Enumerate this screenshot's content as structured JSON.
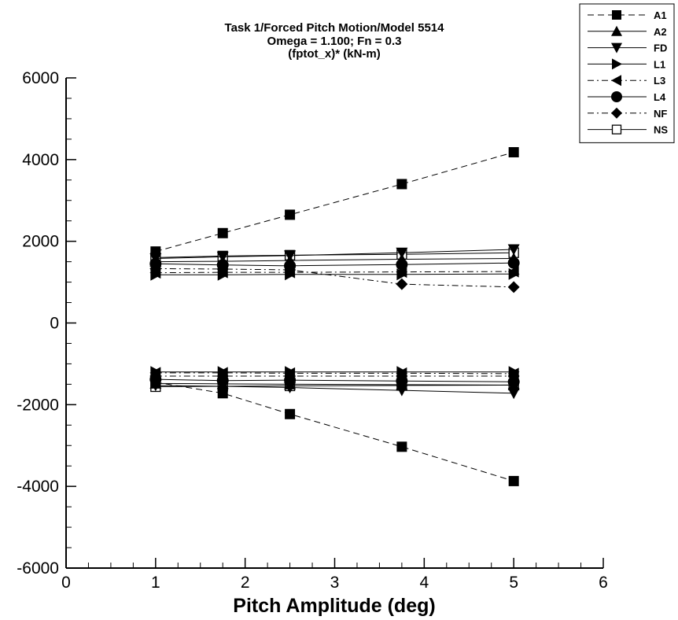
{
  "chart_data": {
    "type": "scatter",
    "title_lines": [
      "Task 1/Forced Pitch Motion/Model 5514",
      "Omega =  1.100; Fn = 0.3",
      "(fptot_x)* (kN-m)"
    ],
    "xlabel": "Pitch Amplitude (deg)",
    "ylabel": "",
    "xlim": [
      0,
      6
    ],
    "ylim": [
      -6000,
      6000
    ],
    "x_ticks": [
      0,
      1,
      2,
      3,
      4,
      5,
      6
    ],
    "y_ticks": [
      -6000,
      -4000,
      -2000,
      0,
      2000,
      4000,
      6000
    ],
    "x_tick_labels": [
      "0",
      "1",
      "2",
      "3",
      "4",
      "5",
      "6"
    ],
    "y_tick_labels": [
      "-6000",
      "-4000",
      "-2000",
      "0",
      "2000",
      "4000",
      "6000"
    ],
    "grid": false,
    "legend_position": "top-right",
    "x": [
      1,
      1.75,
      2.5,
      3.75,
      5
    ],
    "series": [
      {
        "name": "A1",
        "marker": "square",
        "dash": "dashed",
        "upper": [
          1750,
          2200,
          2650,
          3400,
          4180
        ],
        "lower": [
          -1450,
          -1720,
          -2230,
          -3030,
          -3870
        ]
      },
      {
        "name": "A2",
        "marker": "triangle-up",
        "dash": "solid",
        "upper": [
          1500,
          1510,
          1530,
          1560,
          1580
        ],
        "lower": [
          -1480,
          -1490,
          -1500,
          -1510,
          -1520
        ]
      },
      {
        "name": "FD",
        "marker": "triangle-down",
        "dash": "solid",
        "upper": [
          1580,
          1620,
          1650,
          1720,
          1800
        ],
        "lower": [
          -1530,
          -1550,
          -1580,
          -1650,
          -1720
        ]
      },
      {
        "name": "L1",
        "marker": "triangle-right",
        "dash": "solid",
        "upper": [
          1180,
          1180,
          1190,
          1190,
          1200
        ],
        "lower": [
          -1200,
          -1200,
          -1200,
          -1200,
          -1200
        ]
      },
      {
        "name": "L3",
        "marker": "triangle-left",
        "dash": "dashdot",
        "upper": [
          1230,
          1240,
          1240,
          1250,
          1260
        ],
        "lower": [
          -1220,
          -1220,
          -1230,
          -1230,
          -1240
        ]
      },
      {
        "name": "L4",
        "marker": "circle",
        "dash": "solid",
        "upper": [
          1450,
          1420,
          1400,
          1430,
          1470
        ],
        "lower": [
          -1380,
          -1410,
          -1400,
          -1420,
          -1440
        ]
      },
      {
        "name": "NF",
        "marker": "diamond",
        "dash": "dashdot",
        "upper": [
          1330,
          1320,
          1300,
          950,
          880
        ],
        "lower": [
          -1300,
          -1300,
          -1300,
          -1300,
          -1300
        ]
      },
      {
        "name": "NS",
        "marker": "square-open",
        "dash": "solid",
        "upper": [
          1600,
          1640,
          1660,
          1680,
          1720
        ],
        "lower": [
          -1560,
          -1550,
          -1540,
          -1530,
          -1520
        ]
      }
    ]
  }
}
